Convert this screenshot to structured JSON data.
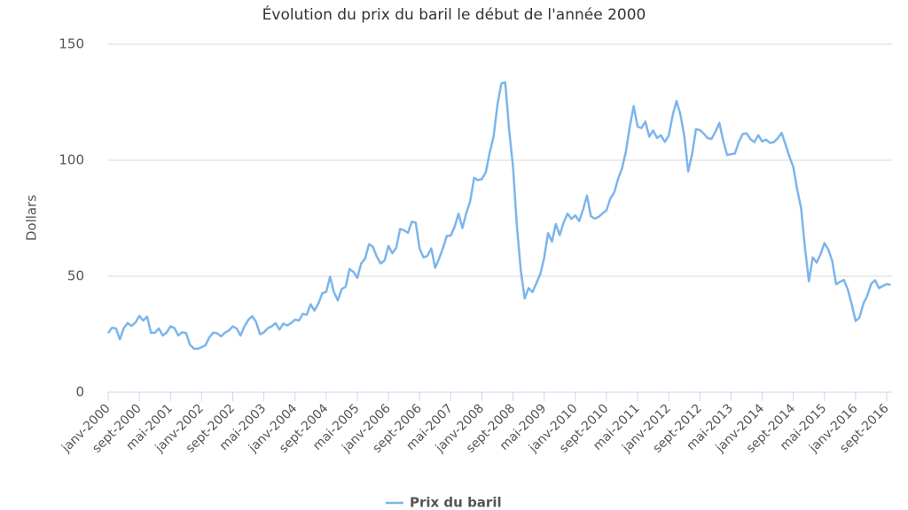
{
  "chart_data": {
    "type": "line",
    "title": "Évolution du prix du baril le début de l'année 2000",
    "y_label": "Dollars",
    "categories": [
      "janv-2000",
      null,
      null,
      null,
      null,
      null,
      null,
      null,
      "sept-2000",
      null,
      null,
      null,
      null,
      null,
      null,
      null,
      "mai-2001",
      null,
      null,
      null,
      null,
      null,
      null,
      null,
      "janv-2002",
      null,
      null,
      null,
      null,
      null,
      null,
      null,
      "sept-2002",
      null,
      null,
      null,
      null,
      null,
      null,
      null,
      "mai-2003",
      null,
      null,
      null,
      null,
      null,
      null,
      null,
      "janv-2004",
      null,
      null,
      null,
      null,
      null,
      null,
      null,
      "sept-2004",
      null,
      null,
      null,
      null,
      null,
      null,
      null,
      "mai-2005",
      null,
      null,
      null,
      null,
      null,
      null,
      null,
      "janv-2006",
      null,
      null,
      null,
      null,
      null,
      null,
      null,
      "sept-2006",
      null,
      null,
      null,
      null,
      null,
      null,
      null,
      "mai-2007",
      null,
      null,
      null,
      null,
      null,
      null,
      null,
      "janv-2008",
      null,
      null,
      null,
      null,
      null,
      null,
      null,
      "sept-2008",
      null,
      null,
      null,
      null,
      null,
      null,
      null,
      "mai-2009",
      null,
      null,
      null,
      null,
      null,
      null,
      null,
      "janv-2010",
      null,
      null,
      null,
      null,
      null,
      null,
      null,
      "sept-2010",
      null,
      null,
      null,
      null,
      null,
      null,
      null,
      "mai-2011",
      null,
      null,
      null,
      null,
      null,
      null,
      null,
      "janv-2012",
      null,
      null,
      null,
      null,
      null,
      null,
      null,
      "sept-2012",
      null,
      null,
      null,
      null,
      null,
      null,
      null,
      "mai-2013",
      null,
      null,
      null,
      null,
      null,
      null,
      null,
      "janv-2014",
      null,
      null,
      null,
      null,
      null,
      null,
      null,
      "sept-2014",
      null,
      null,
      null,
      null,
      null,
      null,
      null,
      "mai-2015",
      null,
      null,
      null,
      null,
      null,
      null,
      null,
      "janv-2016",
      null,
      null,
      null,
      null,
      null,
      null,
      null,
      "sept-2016",
      null
    ],
    "series": [
      {
        "name": "Prix du baril",
        "color": "#7cb5ec",
        "values": [
          25.5,
          27.8,
          27.5,
          22.8,
          27.6,
          29.8,
          28.6,
          30.0,
          32.9,
          30.9,
          32.6,
          25.6,
          25.6,
          27.5,
          24.5,
          25.7,
          28.4,
          27.7,
          24.5,
          25.8,
          25.6,
          20.5,
          18.8,
          18.7,
          19.4,
          20.3,
          23.7,
          25.7,
          25.4,
          24.1,
          25.7,
          26.6,
          28.4,
          27.5,
          24.4,
          28.4,
          31.2,
          32.8,
          30.3,
          25.0,
          25.8,
          27.6,
          28.4,
          29.8,
          27.0,
          29.6,
          28.8,
          29.8,
          31.3,
          30.9,
          33.8,
          33.4,
          37.9,
          35.2,
          38.2,
          42.7,
          43.2,
          49.8,
          43.1,
          39.6,
          44.5,
          45.5,
          53.1,
          51.9,
          49.3,
          55.5,
          57.6,
          63.8,
          62.7,
          58.5,
          55.5,
          56.8,
          63.1,
          59.9,
          62.3,
          70.4,
          69.8,
          68.7,
          73.5,
          73.1,
          62.0,
          58.1,
          58.8,
          62.0,
          53.6,
          57.6,
          62.1,
          67.4,
          67.5,
          71.3,
          77.0,
          70.8,
          77.2,
          82.4,
          92.4,
          91.4,
          91.9,
          94.8,
          103.3,
          110.2,
          123.9,
          133.1,
          133.6,
          113.2,
          97.2,
          71.6,
          52.5,
          40.4,
          44.9,
          43.2,
          47.0,
          50.9,
          57.9,
          68.6,
          64.9,
          72.5,
          67.7,
          73.2,
          77.0,
          74.7,
          76.2,
          73.8,
          78.8,
          84.8,
          75.9,
          74.8,
          75.6,
          77.1,
          78.4,
          83.5,
          86.1,
          92.0,
          96.5,
          103.7,
          114.6,
          123.3,
          114.5,
          113.9,
          116.7,
          110.2,
          112.8,
          109.6,
          110.8,
          107.9,
          110.7,
          119.3,
          125.5,
          119.8,
          110.3,
          95.2,
          102.6,
          113.4,
          113.0,
          111.5,
          109.5,
          109.2,
          112.3,
          116.1,
          108.5,
          102.3,
          102.6,
          102.9,
          107.9,
          111.3,
          111.6,
          109.1,
          107.8,
          110.8,
          108.1,
          108.9,
          107.5,
          107.8,
          109.5,
          111.8,
          106.8,
          101.6,
          97.1,
          87.4,
          79.4,
          62.3,
          47.8,
          58.1,
          55.9,
          59.5,
          64.3,
          61.5,
          56.6,
          46.5,
          47.6,
          48.4,
          44.3,
          38.0,
          30.7,
          32.2,
          38.2,
          41.6,
          46.7,
          48.3,
          44.9,
          45.8,
          46.6,
          46.3
        ]
      }
    ],
    "ylim": [
      0,
      150
    ],
    "yticks": [
      0,
      50,
      100,
      150
    ],
    "grid": true
  }
}
